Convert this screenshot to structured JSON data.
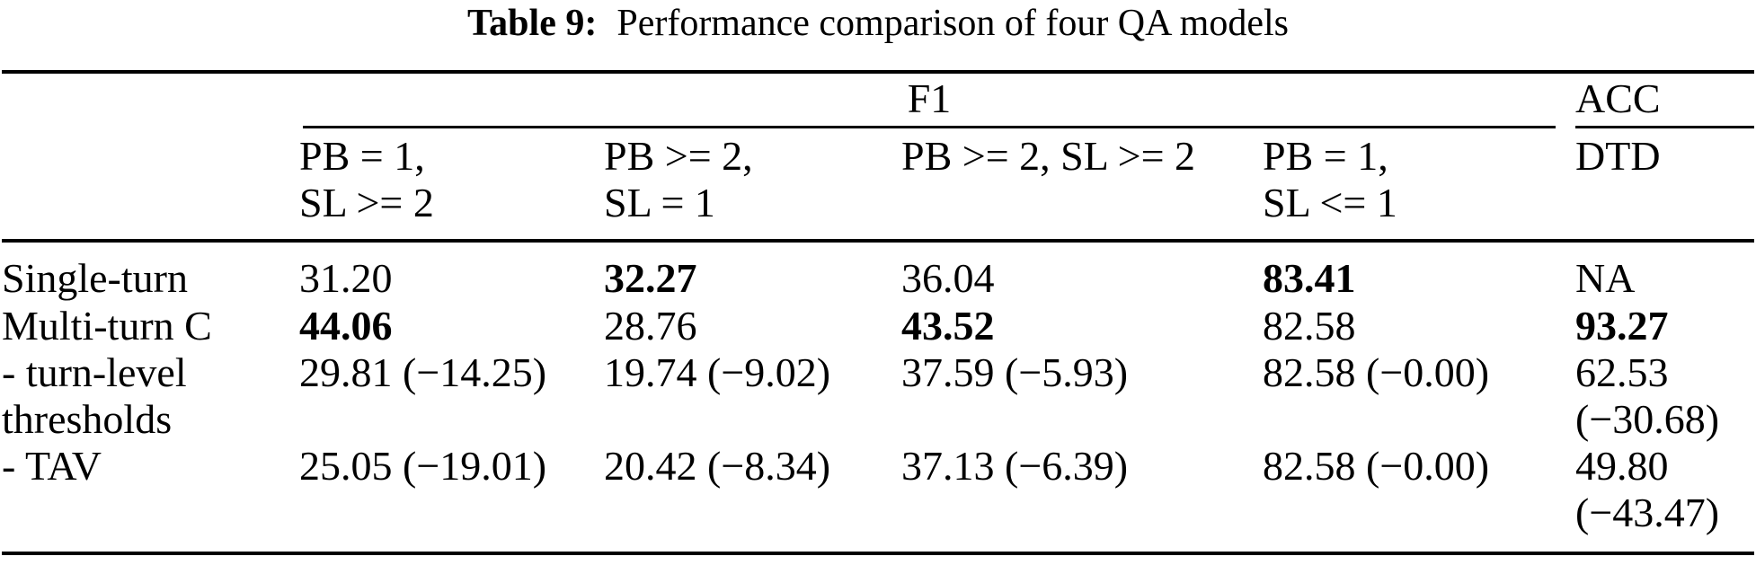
{
  "title": {
    "label": "Table 9:",
    "text": "Performance comparison of four QA models"
  },
  "header": {
    "group_f1": "F1",
    "group_acc": "ACC",
    "columns": [
      {
        "line1": "PB = 1,",
        "line2": "SL >= 2"
      },
      {
        "line1": "PB >= 2,",
        "line2": "SL = 1"
      },
      {
        "line1": "PB >= 2, SL >= 2",
        "line2": ""
      },
      {
        "line1": "PB = 1,",
        "line2": "SL <= 1"
      },
      {
        "line1": "DTD",
        "line2": ""
      }
    ]
  },
  "rows": [
    {
      "label": "Single-turn",
      "label2": "",
      "cells": [
        {
          "text": "31.20",
          "bold": false,
          "line2": ""
        },
        {
          "text": "32.27",
          "bold": true,
          "line2": ""
        },
        {
          "text": "36.04",
          "bold": false,
          "line2": ""
        },
        {
          "text": "83.41",
          "bold": true,
          "line2": ""
        },
        {
          "text": "NA",
          "bold": false,
          "line2": ""
        }
      ]
    },
    {
      "label": "Multi-turn C",
      "label2": "",
      "cells": [
        {
          "text": "44.06",
          "bold": true,
          "line2": ""
        },
        {
          "text": "28.76",
          "bold": false,
          "line2": ""
        },
        {
          "text": "43.52",
          "bold": true,
          "line2": ""
        },
        {
          "text": "82.58",
          "bold": false,
          "line2": ""
        },
        {
          "text": "93.27",
          "bold": true,
          "line2": ""
        }
      ]
    },
    {
      "label": "- turn-level",
      "label2": "thresholds",
      "cells": [
        {
          "text": "29.81 (−14.25)",
          "bold": false,
          "line2": ""
        },
        {
          "text": "19.74 (−9.02)",
          "bold": false,
          "line2": ""
        },
        {
          "text": "37.59 (−5.93)",
          "bold": false,
          "line2": ""
        },
        {
          "text": "82.58 (−0.00)",
          "bold": false,
          "line2": ""
        },
        {
          "text": "62.53",
          "bold": false,
          "line2": "(−30.68)"
        }
      ]
    },
    {
      "label": "- TAV",
      "label2": "",
      "cells": [
        {
          "text": "25.05 (−19.01)",
          "bold": false,
          "line2": ""
        },
        {
          "text": "20.42 (−8.34)",
          "bold": false,
          "line2": ""
        },
        {
          "text": "37.13 (−6.39)",
          "bold": false,
          "line2": ""
        },
        {
          "text": "82.58 (−0.00)",
          "bold": false,
          "line2": ""
        },
        {
          "text": "49.80",
          "bold": false,
          "line2": "(−43.47)"
        }
      ]
    }
  ],
  "chart_data": {
    "type": "table",
    "title": "Table 9: Performance comparison of four QA models",
    "column_groups": [
      {
        "name": "F1",
        "span": 4
      },
      {
        "name": "ACC",
        "span": 1
      }
    ],
    "columns": [
      "PB = 1, SL >= 2",
      "PB >= 2, SL = 1",
      "PB >= 2, SL >= 2",
      "PB = 1, SL <= 1",
      "DTD"
    ],
    "row_labels": [
      "Single-turn",
      "Multi-turn C",
      "- turn-level thresholds",
      "- TAV"
    ],
    "values": [
      [
        "31.20",
        "32.27",
        "36.04",
        "83.41",
        "NA"
      ],
      [
        "44.06",
        "28.76",
        "43.52",
        "82.58",
        "93.27"
      ],
      [
        "29.81 (−14.25)",
        "19.74 (−9.02)",
        "37.59 (−5.93)",
        "82.58 (−0.00)",
        "62.53 (−30.68)"
      ],
      [
        "25.05 (−19.01)",
        "20.42 (−8.34)",
        "37.13 (−6.39)",
        "82.58 (−0.00)",
        "49.80 (−43.47)"
      ]
    ],
    "bold_cells": [
      [
        0,
        1
      ],
      [
        0,
        3
      ],
      [
        1,
        0
      ],
      [
        1,
        2
      ],
      [
        1,
        4
      ]
    ]
  }
}
